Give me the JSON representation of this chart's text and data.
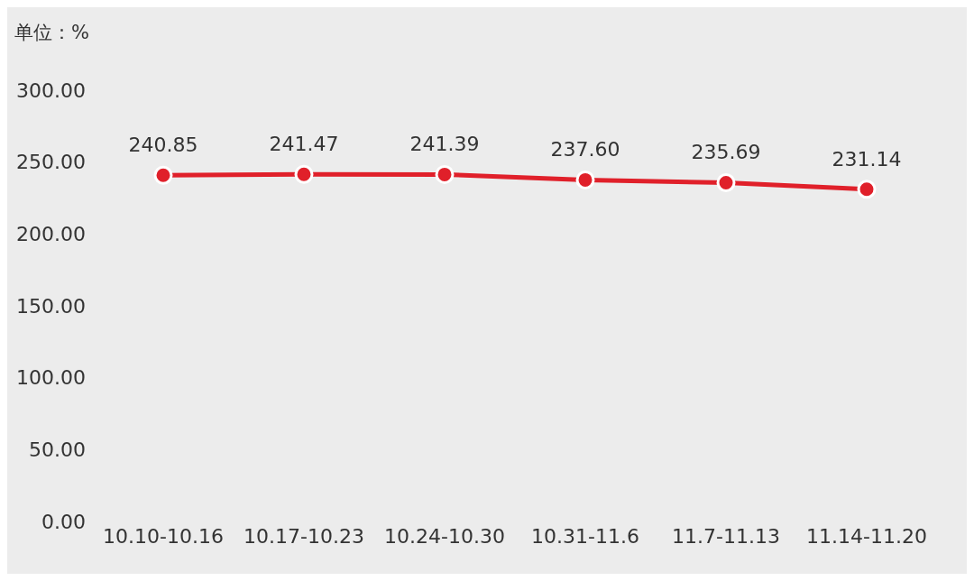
{
  "chart_data": {
    "type": "line",
    "ylabel": "单位：%",
    "categories": [
      "10.10-10.16",
      "10.17-10.23",
      "10.24-10.30",
      "10.31-11.6",
      "11.7-11.13",
      "11.14-11.20"
    ],
    "series": [
      {
        "color": "#e0202a",
        "values": [
          240.85,
          241.47,
          241.39,
          237.6,
          235.69,
          231.14
        ],
        "value_labels": [
          "240.85",
          "241.47",
          "241.39",
          "237.60",
          "235.69",
          "231.14"
        ]
      }
    ],
    "ylim": [
      0,
      300
    ],
    "yticks": [
      {
        "value": 0,
        "label": "0.00"
      },
      {
        "value": 50,
        "label": "50.00"
      },
      {
        "value": 100,
        "label": "100.00"
      },
      {
        "value": 150,
        "label": "150.00"
      },
      {
        "value": 200,
        "label": "200.00"
      },
      {
        "value": 250,
        "label": "250.00"
      },
      {
        "value": 300,
        "label": "300.00"
      }
    ],
    "marker": "circle",
    "line_style": "solid"
  }
}
